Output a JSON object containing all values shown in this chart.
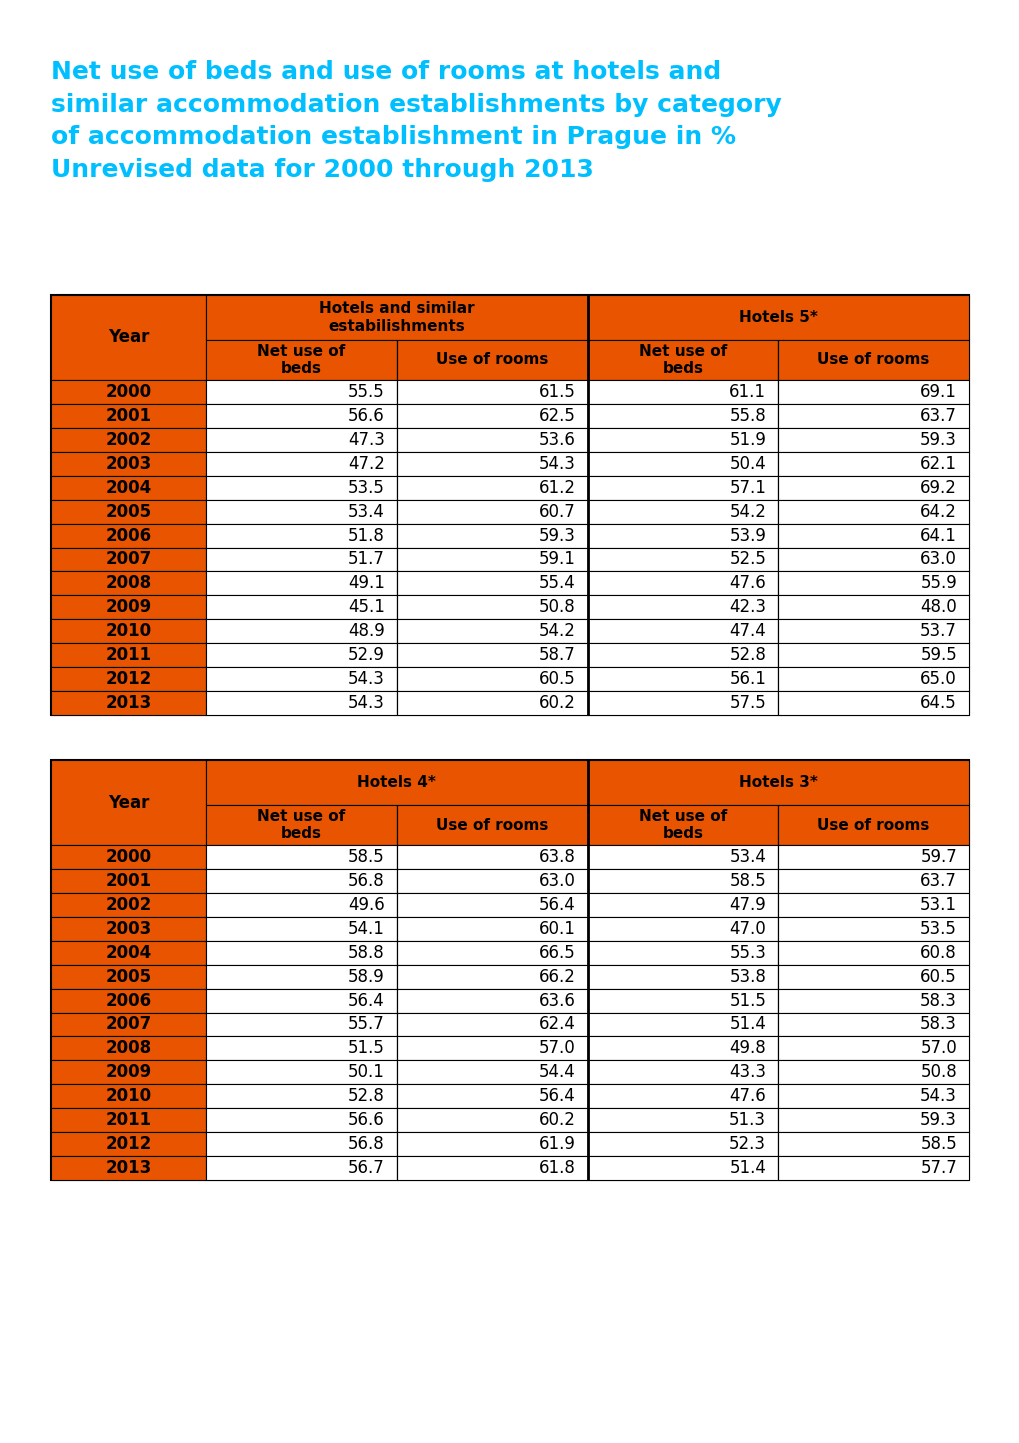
{
  "title_line1": "Net use of beds and use of rooms at hotels and",
  "title_line2": "similar accommodation establishments by category",
  "title_line3": "of accommodation establishment in Prague in %",
  "title_line4": "Unrevised data for 2000 through 2013",
  "title_color": "#00BFFF",
  "orange_color": "#E85400",
  "years": [
    2000,
    2001,
    2002,
    2003,
    2004,
    2005,
    2006,
    2007,
    2008,
    2009,
    2010,
    2011,
    2012,
    2013
  ],
  "table1": {
    "header1": "Hotels and similar\nestabilishments",
    "header2": "Hotels 5*",
    "col1_label": "Net use of\nbeds",
    "col2_label": "Use of rooms",
    "col3_label": "Net use of\nbeds",
    "col4_label": "Use of rooms",
    "col1": [
      55.5,
      56.6,
      47.3,
      47.2,
      53.5,
      53.4,
      51.8,
      51.7,
      49.1,
      45.1,
      48.9,
      52.9,
      54.3,
      54.3
    ],
    "col2": [
      61.5,
      62.5,
      53.6,
      54.3,
      61.2,
      60.7,
      59.3,
      59.1,
      55.4,
      50.8,
      54.2,
      58.7,
      60.5,
      60.2
    ],
    "col3": [
      61.1,
      55.8,
      51.9,
      50.4,
      57.1,
      54.2,
      53.9,
      52.5,
      47.6,
      42.3,
      47.4,
      52.8,
      56.1,
      57.5
    ],
    "col4": [
      69.1,
      63.7,
      59.3,
      62.1,
      69.2,
      64.2,
      64.1,
      63.0,
      55.9,
      48.0,
      53.7,
      59.5,
      65.0,
      64.5
    ]
  },
  "table2": {
    "header1": "Hotels 4*",
    "header2": "Hotels 3*",
    "col1_label": "Net use of\nbeds",
    "col2_label": "Use of rooms",
    "col3_label": "Net use of\nbeds",
    "col4_label": "Use of rooms",
    "col1": [
      58.5,
      56.8,
      49.6,
      54.1,
      58.8,
      58.9,
      56.4,
      55.7,
      51.5,
      50.1,
      52.8,
      56.6,
      56.8,
      56.7
    ],
    "col2": [
      63.8,
      63.0,
      56.4,
      60.1,
      66.5,
      66.2,
      63.6,
      62.4,
      57.0,
      54.4,
      56.4,
      60.2,
      61.9,
      61.8
    ],
    "col3": [
      53.4,
      58.5,
      47.9,
      47.0,
      55.3,
      53.8,
      51.5,
      51.4,
      49.8,
      43.3,
      47.6,
      51.3,
      52.3,
      51.4
    ],
    "col4": [
      59.7,
      63.7,
      53.1,
      53.5,
      60.8,
      60.5,
      58.3,
      58.3,
      57.0,
      50.8,
      54.3,
      59.3,
      58.5,
      57.7
    ]
  }
}
